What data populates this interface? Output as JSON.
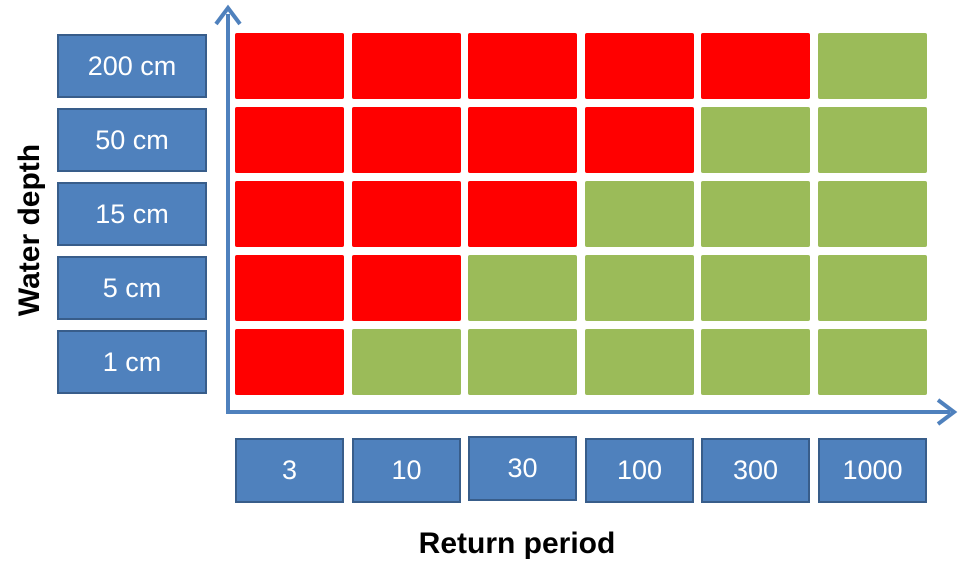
{
  "chart_data": {
    "type": "heatmap",
    "xlabel": "Return period",
    "ylabel": "Water depth",
    "x_categories": [
      "3",
      "10",
      "30",
      "100",
      "300",
      "1000"
    ],
    "y_categories": [
      "200 cm",
      "50 cm",
      "15 cm",
      "5 cm",
      "1 cm"
    ],
    "matrix": [
      [
        "red",
        "red",
        "red",
        "red",
        "red",
        "green"
      ],
      [
        "red",
        "red",
        "red",
        "red",
        "green",
        "green"
      ],
      [
        "red",
        "red",
        "red",
        "green",
        "green",
        "green"
      ],
      [
        "red",
        "red",
        "green",
        "green",
        "green",
        "green"
      ],
      [
        "red",
        "green",
        "green",
        "green",
        "green",
        "green"
      ]
    ],
    "colors": {
      "red": "#ff0000",
      "green": "#9bbb59",
      "label_fill": "#4f81bd",
      "label_border": "#385d8a",
      "axis": "#4f81bd"
    }
  }
}
